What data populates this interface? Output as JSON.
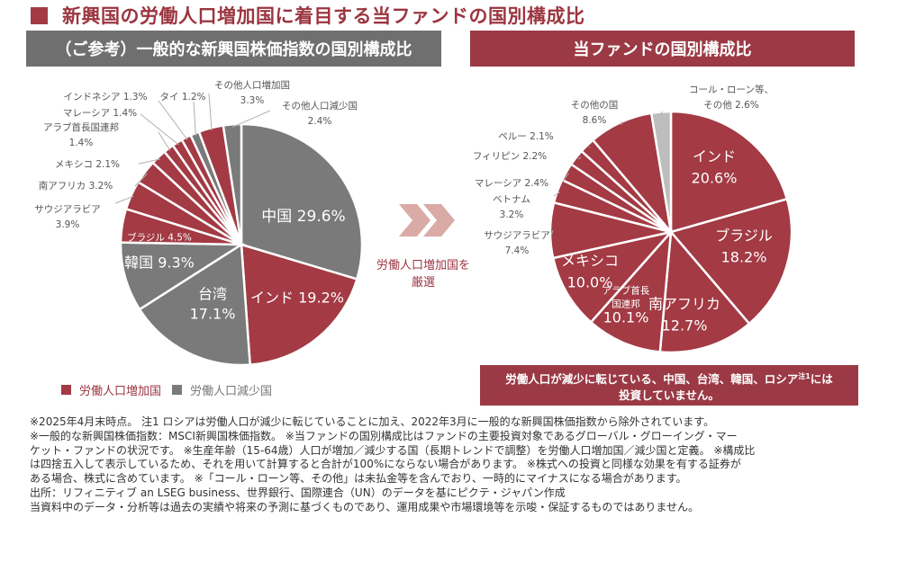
{
  "page": {
    "title": "新興国の労働人口増加国に着目する当ファンドの国別構成比",
    "left_header": "（ご参考）一般的な新興国株価指数の国別構成比",
    "right_header": "当ファンドの国別構成比",
    "arrow_caption_line1": "労働人口増加国を",
    "arrow_caption_line2": "厳選",
    "legend": {
      "increase": "労働人口増加国",
      "decrease": "労働人口減少国"
    },
    "note_box": {
      "line1_pre": "労働人口が減少に転じている、中国、台湾、韓国、ロシア",
      "line1_sup": "注1",
      "line1_post": "には",
      "line2": "投資していません。"
    },
    "footnotes": [
      "※2025年4月末時点。 注1 ロシアは労働人口が減少に転じていることに加え、2022年3月に一般的な新興国株価指数から除外されています。",
      "※一般的な新興国株価指数：MSCI新興国株価指数。 ※当ファンドの国別構成比はファンドの主要投資対象であるグローバル・グローイング・マー",
      "ケット・ファンドの状況です。 ※生産年齢（15-64歳）人口が増加／減少する国（長期トレンドで調整）を労働人口増加国／減少国と定義。 ※構成比",
      "は四捨五入して表示しているため、それを用いて計算すると合計が100%にならない場合があります。 ※株式への投資と同様な効果を有する証券が",
      "ある場合、株式に含めています。 ※「コール・ローン等、その他」は未払金等を含んでおり、一時的にマイナスになる場合があります。",
      "出所：リフィニティブ an LSEG business、世界銀行、国際連合（UN）のデータを基にピクテ・ジャパン作成",
      "当資料中のデータ・分析等は過去の実績や将来の予測に基づくものであり、運用成果や市場環境等を示唆・保証するものではありません。"
    ],
    "colors": {
      "increase": "#a33a44",
      "decrease": "#7a7a7a",
      "other": "#bdbdbd",
      "title": "#9b3540",
      "arrow": "#d9aaa6"
    }
  },
  "chart_data": [
    {
      "type": "pie",
      "title": "（ご参考）一般的な新興国株価指数の国別構成比",
      "unit": "%",
      "slices": [
        {
          "label": "中国",
          "value": 29.6,
          "group": "decrease"
        },
        {
          "label": "インド",
          "value": 19.2,
          "group": "increase"
        },
        {
          "label": "台湾",
          "value": 17.1,
          "group": "decrease"
        },
        {
          "label": "韓国",
          "value": 9.3,
          "group": "decrease"
        },
        {
          "label": "ブラジル",
          "value": 4.5,
          "group": "increase"
        },
        {
          "label": "サウジアラビア",
          "value": 3.9,
          "group": "increase"
        },
        {
          "label": "南アフリカ",
          "value": 3.2,
          "group": "increase"
        },
        {
          "label": "メキシコ",
          "value": 2.1,
          "group": "increase"
        },
        {
          "label": "アラブ首長国連邦",
          "value": 1.4,
          "group": "increase"
        },
        {
          "label": "マレーシア",
          "value": 1.4,
          "group": "increase"
        },
        {
          "label": "インドネシア",
          "value": 1.3,
          "group": "increase"
        },
        {
          "label": "タイ",
          "value": 1.2,
          "group": "decrease"
        },
        {
          "label": "その他人口増加国",
          "value": 3.3,
          "group": "increase"
        },
        {
          "label": "その他人口減少国",
          "value": 2.4,
          "group": "decrease"
        }
      ],
      "legend": [
        "労働人口増加国",
        "労働人口減少国"
      ],
      "legend_position": "bottom-left"
    },
    {
      "type": "pie",
      "title": "当ファンドの国別構成比",
      "unit": "%",
      "slices": [
        {
          "label": "インド",
          "value": 20.6,
          "group": "increase"
        },
        {
          "label": "ブラジル",
          "value": 18.2,
          "group": "increase"
        },
        {
          "label": "南アフリカ",
          "value": 12.7,
          "group": "increase"
        },
        {
          "label": "アラブ首長国連邦",
          "value": 10.1,
          "group": "increase"
        },
        {
          "label": "メキシコ",
          "value": 10.0,
          "group": "increase"
        },
        {
          "label": "サウジアラビア",
          "value": 7.4,
          "group": "increase"
        },
        {
          "label": "ベトナム",
          "value": 3.2,
          "group": "increase"
        },
        {
          "label": "マレーシア",
          "value": 2.4,
          "group": "increase"
        },
        {
          "label": "フィリピン",
          "value": 2.2,
          "group": "increase"
        },
        {
          "label": "ペルー",
          "value": 2.1,
          "group": "increase"
        },
        {
          "label": "その他の国",
          "value": 8.6,
          "group": "increase"
        },
        {
          "label": "コール・ローン等、その他",
          "value": 2.6,
          "group": "other"
        }
      ]
    }
  ]
}
